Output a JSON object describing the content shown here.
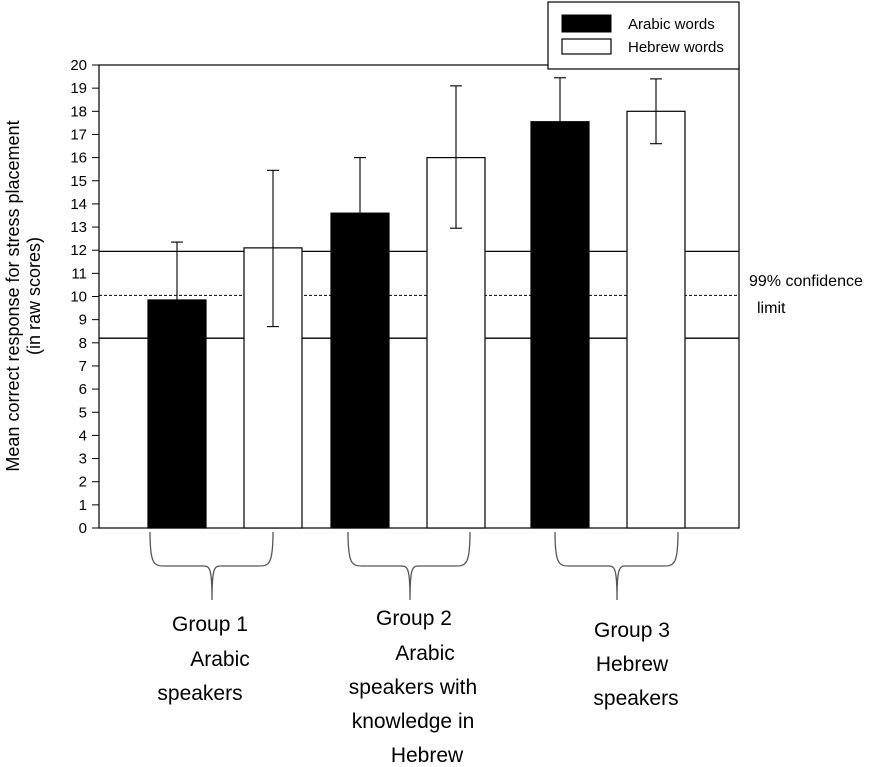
{
  "chart_data": {
    "type": "bar",
    "ylabel_line1": "Mean correct response for stress placement",
    "ylabel_line2": "(in raw scores)",
    "ylim": [
      0,
      20
    ],
    "yticks": [
      0,
      1,
      2,
      3,
      4,
      5,
      6,
      7,
      8,
      9,
      10,
      11,
      12,
      13,
      14,
      15,
      16,
      17,
      18,
      19,
      20
    ],
    "groups": [
      {
        "label_lines": [
          "Group 1",
          "Arabic",
          "speakers"
        ]
      },
      {
        "label_lines": [
          "Group 2",
          "Arabic",
          "speakers with",
          "knowledge in",
          "Hebrew"
        ]
      },
      {
        "label_lines": [
          "Group 3",
          "Hebrew",
          "speakers"
        ]
      }
    ],
    "series": [
      {
        "name": "Arabic words",
        "color": "#000000",
        "values": [
          9.85,
          13.6,
          17.55
        ],
        "err_low": [
          9.85,
          13.6,
          17.55
        ],
        "err_high": [
          12.35,
          16.0,
          19.45
        ]
      },
      {
        "name": "Hebrew words",
        "color": "#ffffff",
        "values": [
          12.1,
          16.0,
          18.0
        ],
        "err_low": [
          8.7,
          12.95,
          16.6
        ],
        "err_high": [
          15.45,
          19.1,
          19.4
        ]
      }
    ],
    "confidence_limit": {
      "label_line1": "99% confidence",
      "label_line2": "limit",
      "center": 10.05,
      "upper": 11.95,
      "lower": 8.2
    },
    "legend_position": "top-right",
    "grid": false
  }
}
